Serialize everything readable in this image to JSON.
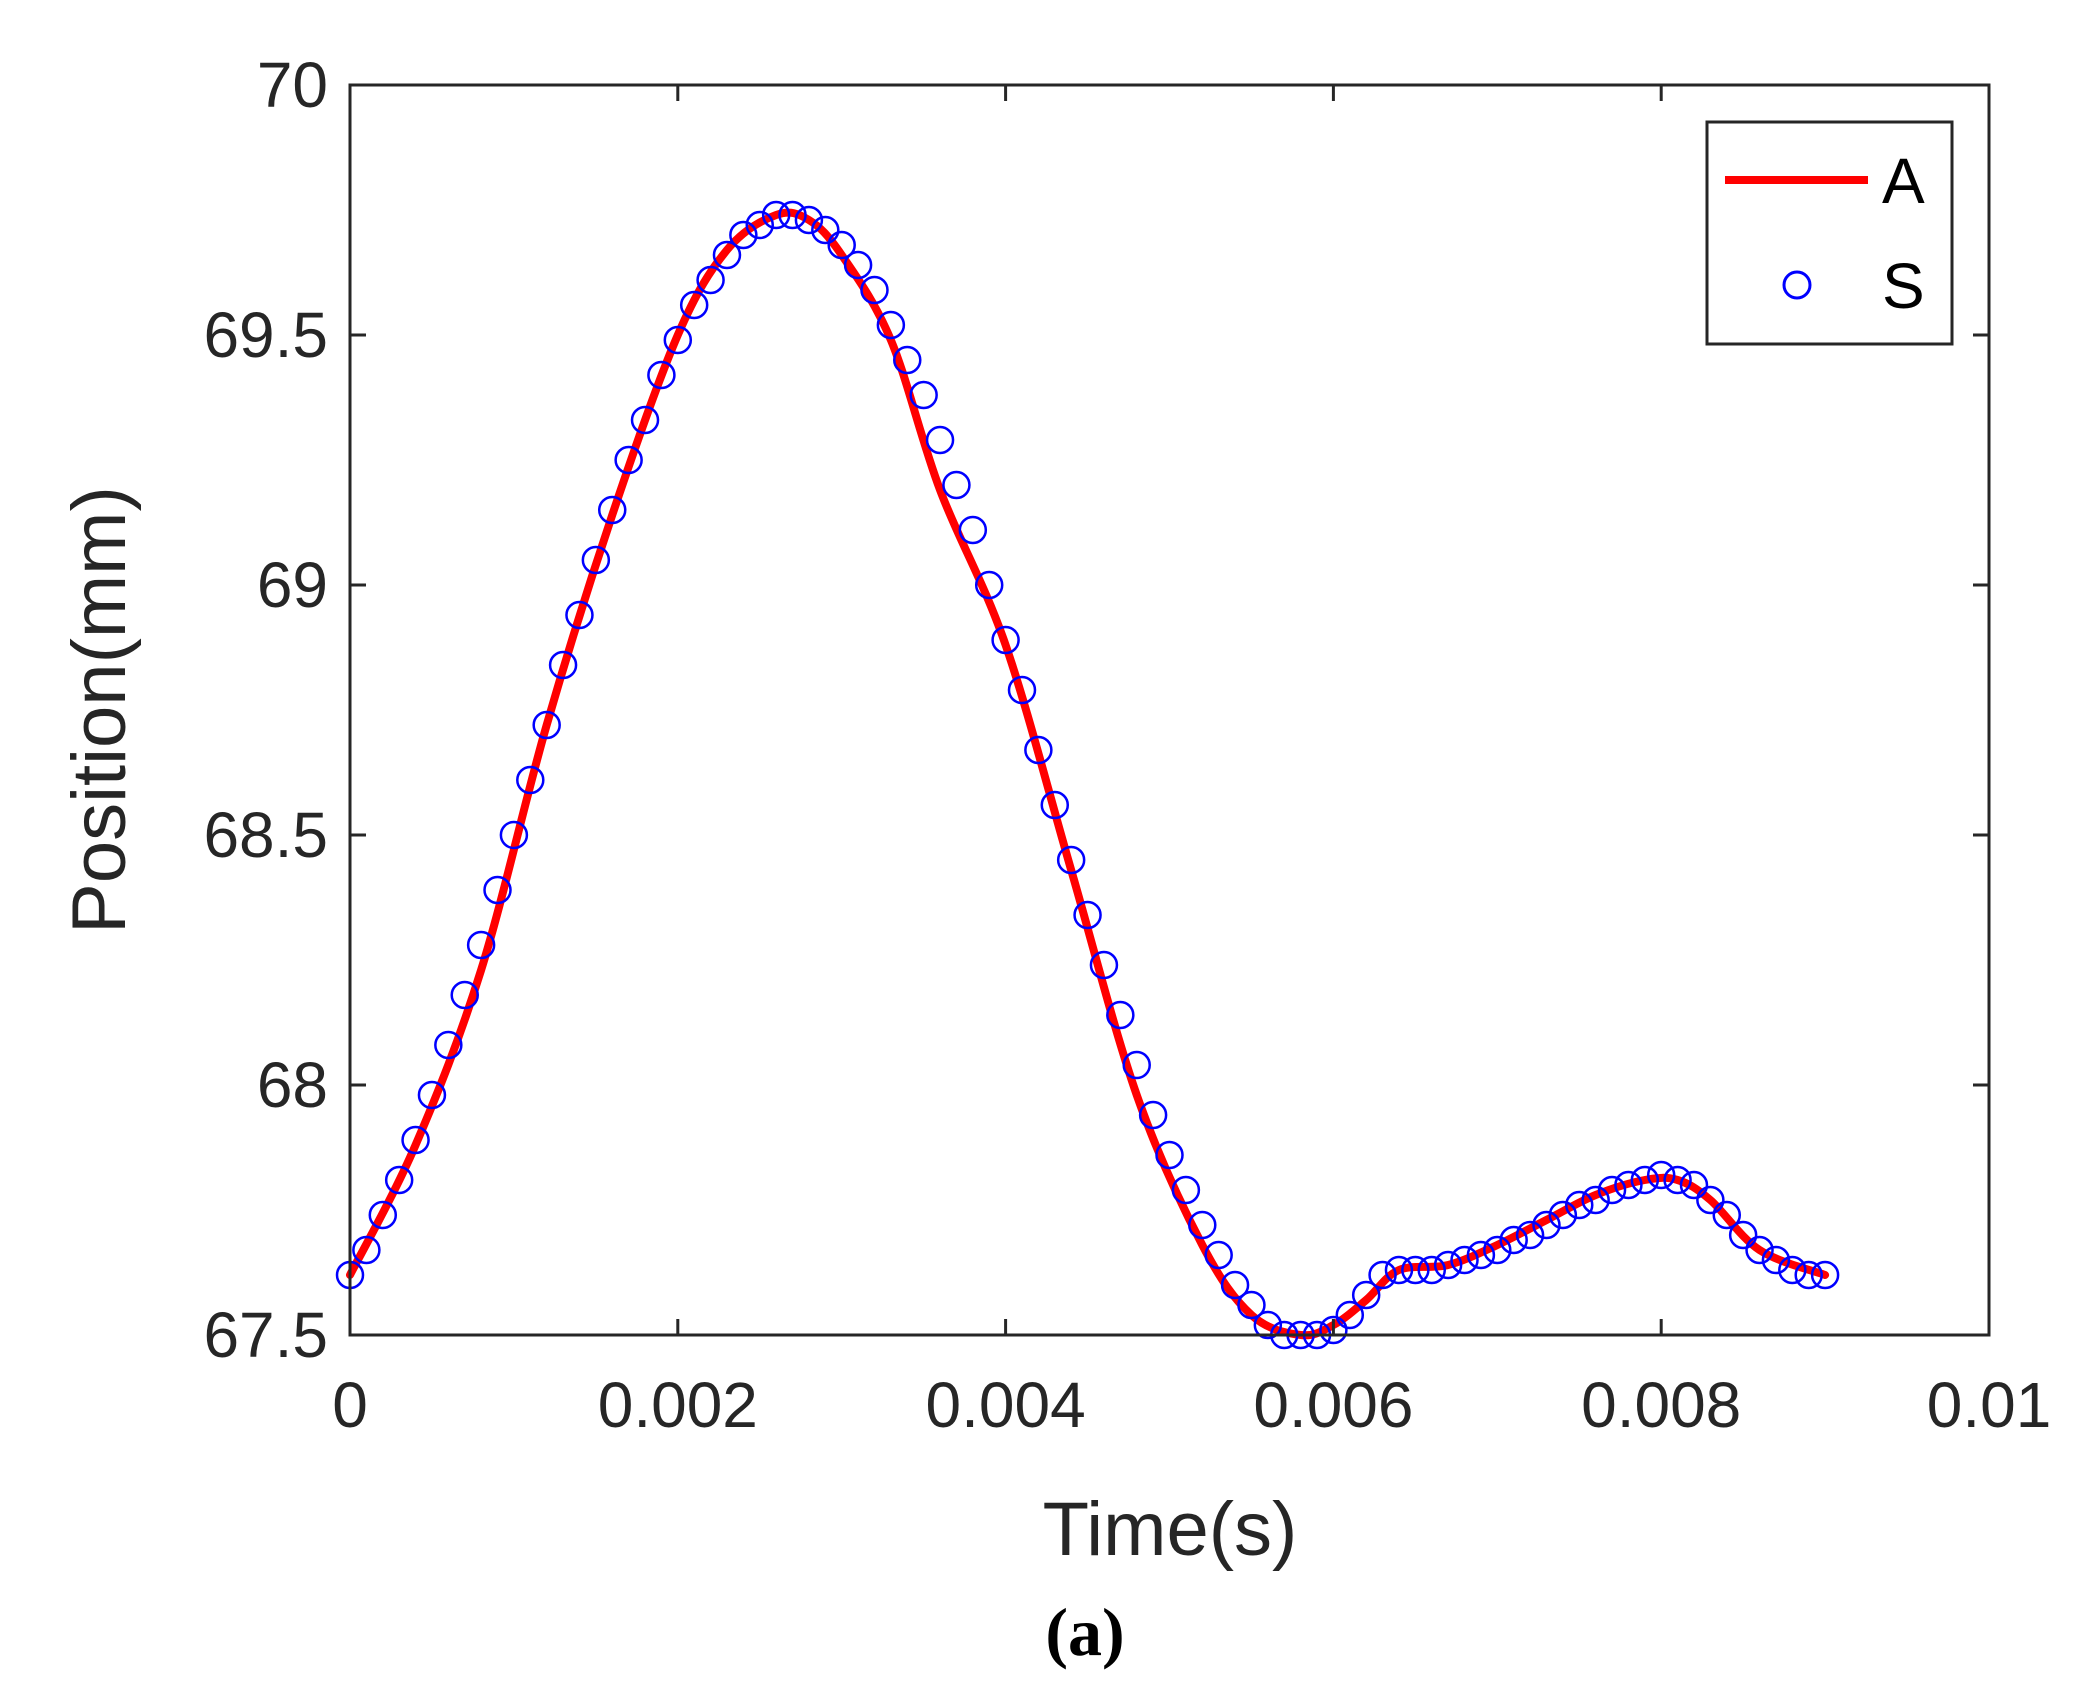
{
  "chart_data": {
    "type": "line",
    "title": "",
    "xlabel": "Time(s)",
    "ylabel": "Position(mm)",
    "caption": "(a)",
    "xlim": [
      0,
      0.01
    ],
    "ylim": [
      67.5,
      70
    ],
    "xticks": [
      0,
      0.002,
      0.004,
      0.006,
      0.008,
      0.01
    ],
    "xtick_labels": [
      "0",
      "0.002",
      "0.004",
      "0.006",
      "0.008",
      "0.01"
    ],
    "yticks": [
      67.5,
      68,
      68.5,
      69,
      69.5,
      70
    ],
    "ytick_labels": [
      "67.5",
      "68",
      "68.5",
      "69",
      "69.5",
      "70"
    ],
    "legend_position": "top-right",
    "colors": {
      "A": "#ff0000",
      "S": "#0000ff",
      "axis": "#262626"
    },
    "series": [
      {
        "name": "A",
        "style": "solid-line",
        "x": [
          0,
          0.0004,
          0.0008,
          0.0012,
          0.0016,
          0.002,
          0.0023,
          0.0026,
          0.0028,
          0.003,
          0.0033,
          0.0036,
          0.004,
          0.0044,
          0.0048,
          0.0052,
          0.0055,
          0.0058,
          0.006,
          0.0062,
          0.0064,
          0.0067,
          0.007,
          0.0073,
          0.0076,
          0.0079,
          0.0081,
          0.0083,
          0.0086,
          0.009
        ],
        "y": [
          67.62,
          67.88,
          68.23,
          68.72,
          69.14,
          69.5,
          69.67,
          69.74,
          69.73,
          69.66,
          69.49,
          69.19,
          68.88,
          68.43,
          67.98,
          67.68,
          67.54,
          67.5,
          67.52,
          67.57,
          67.63,
          67.64,
          67.68,
          67.73,
          67.78,
          67.81,
          67.81,
          67.77,
          67.67,
          67.62
        ]
      },
      {
        "name": "S",
        "style": "open-circles",
        "x": [
          0,
          0.0001,
          0.0002,
          0.0003,
          0.0004,
          0.0005,
          0.0006,
          0.0007,
          0.0008,
          0.0009,
          0.001,
          0.0011,
          0.0012,
          0.0013,
          0.0014,
          0.0015,
          0.0016,
          0.0017,
          0.0018,
          0.0019,
          0.002,
          0.0021,
          0.0022,
          0.0023,
          0.0024,
          0.0025,
          0.0026,
          0.0027,
          0.0028,
          0.0029,
          0.003,
          0.0031,
          0.0032,
          0.0033,
          0.0034,
          0.0035,
          0.0036,
          0.0037,
          0.0038,
          0.0039,
          0.004,
          0.0041,
          0.0042,
          0.0043,
          0.0044,
          0.0045,
          0.0046,
          0.0047,
          0.0048,
          0.0049,
          0.005,
          0.0051,
          0.0052,
          0.0053,
          0.0054,
          0.0055,
          0.0056,
          0.0057,
          0.0058,
          0.0059,
          0.006,
          0.0061,
          0.0062,
          0.0063,
          0.0064,
          0.0065,
          0.0066,
          0.0067,
          0.0068,
          0.0069,
          0.007,
          0.0071,
          0.0072,
          0.0073,
          0.0074,
          0.0075,
          0.0076,
          0.0077,
          0.0078,
          0.0079,
          0.008,
          0.0081,
          0.0082,
          0.0083,
          0.0084,
          0.0085,
          0.0086,
          0.0087,
          0.0088,
          0.0089,
          0.009
        ],
        "y": [
          67.62,
          67.67,
          67.74,
          67.81,
          67.89,
          67.98,
          68.08,
          68.18,
          68.28,
          68.39,
          68.5,
          68.61,
          68.72,
          68.84,
          68.94,
          69.05,
          69.15,
          69.25,
          69.33,
          69.42,
          69.49,
          69.56,
          69.61,
          69.66,
          69.7,
          69.72,
          69.74,
          69.74,
          69.73,
          69.71,
          69.68,
          69.64,
          69.59,
          69.52,
          69.45,
          69.38,
          69.29,
          69.2,
          69.11,
          69.0,
          68.89,
          68.79,
          68.67,
          68.56,
          68.45,
          68.34,
          68.24,
          68.14,
          68.04,
          67.94,
          67.86,
          67.79,
          67.72,
          67.66,
          67.6,
          67.56,
          67.52,
          67.5,
          67.5,
          67.5,
          67.51,
          67.54,
          67.58,
          67.62,
          67.63,
          67.63,
          67.63,
          67.64,
          67.65,
          67.66,
          67.67,
          67.69,
          67.7,
          67.72,
          67.74,
          67.76,
          67.77,
          67.79,
          67.8,
          67.81,
          67.82,
          67.81,
          67.8,
          67.77,
          67.74,
          67.7,
          67.67,
          67.65,
          67.63,
          67.62,
          67.62
        ]
      }
    ]
  }
}
